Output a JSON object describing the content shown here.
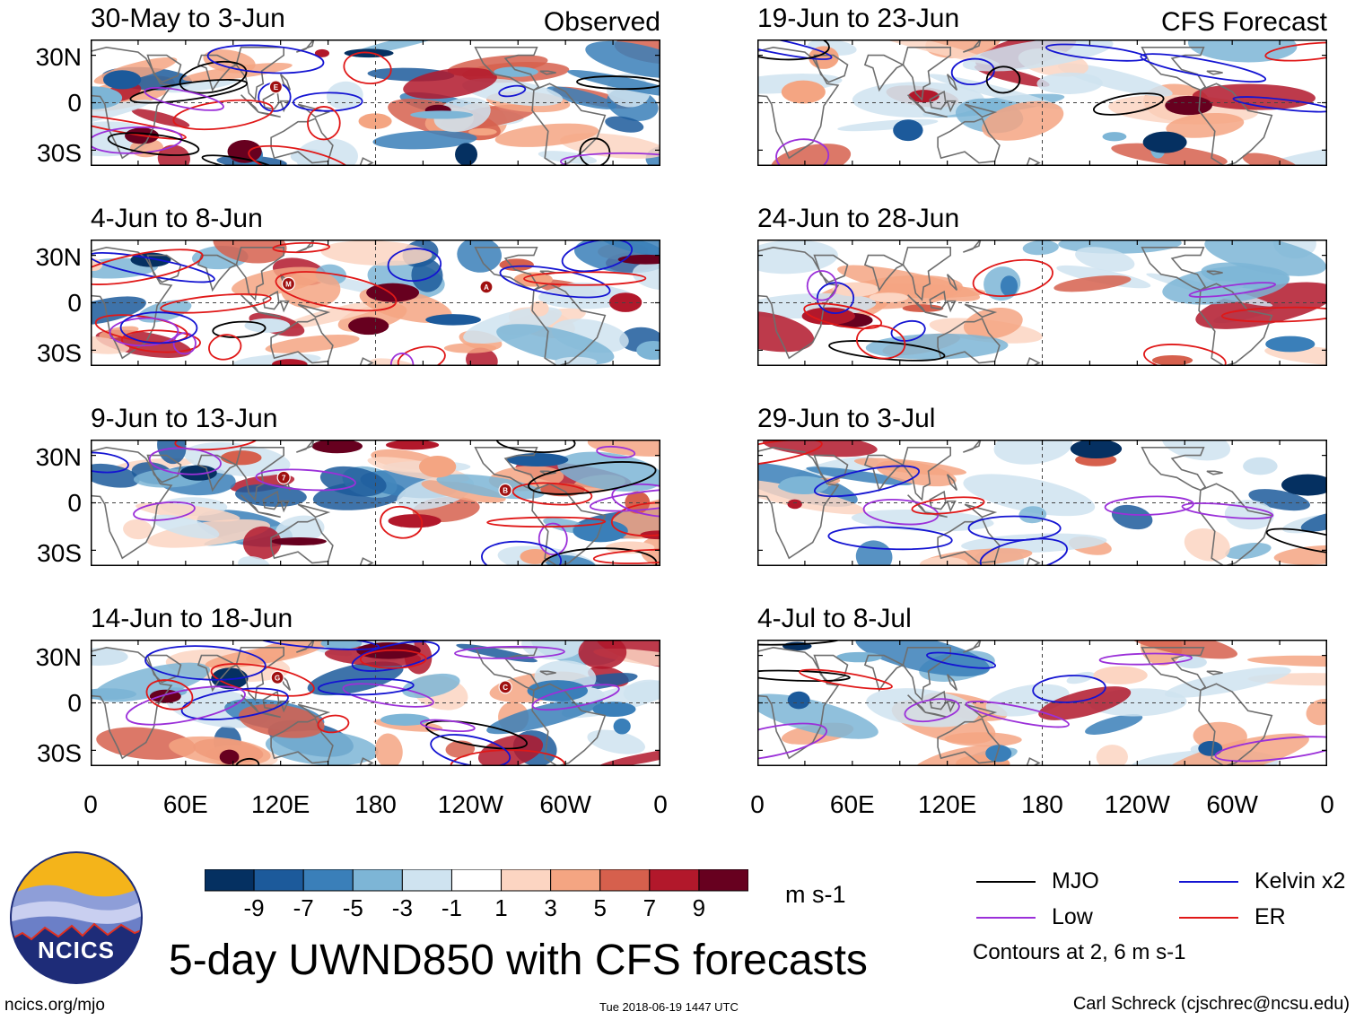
{
  "chart_data": {
    "type": "heatmap",
    "title": "5-day UWND850 with CFS forecasts",
    "variable": "UWND850",
    "units": "m s-1",
    "x_ticks": [
      "0",
      "60E",
      "120E",
      "180",
      "120W",
      "60W",
      "0"
    ],
    "y_ticks": [
      "30N",
      "0",
      "30S"
    ],
    "colorbar": {
      "tick_labels": [
        "-9",
        "-7",
        "-5",
        "-3",
        "-1",
        "1",
        "3",
        "5",
        "7",
        "9"
      ],
      "bins": [
        {
          "range": "< -9",
          "color": "#053061"
        },
        {
          "range": "-9 to -7",
          "color": "#1c5a9b"
        },
        {
          "range": "-7 to -5",
          "color": "#3a7fb9"
        },
        {
          "range": "-5 to -3",
          "color": "#7db5d6"
        },
        {
          "range": "-3 to -1",
          "color": "#cfe3f0"
        },
        {
          "range": "-1 to 1",
          "color": "#ffffff"
        },
        {
          "range": "1 to 3",
          "color": "#fcd5c2"
        },
        {
          "range": "3 to 5",
          "color": "#f4a582"
        },
        {
          "range": "5 to 7",
          "color": "#d6604d"
        },
        {
          "range": "7 to 9",
          "color": "#b2182b"
        },
        {
          "range": "> 9",
          "color": "#67001f"
        }
      ]
    },
    "contour_legend": [
      {
        "name": "MJO",
        "color": "#000000"
      },
      {
        "name": "Kelvin x2",
        "color": "#1414d2"
      },
      {
        "name": "Low",
        "color": "#9b30d9"
      },
      {
        "name": "ER",
        "color": "#e01818"
      }
    ],
    "contour_note": "Contours at 2, 6 m s-1",
    "panels": [
      {
        "period": "30-May to 3-Jun",
        "tag": "Observed",
        "storm_markers": [
          "E"
        ]
      },
      {
        "period": "4-Jun to 8-Jun",
        "tag": "",
        "storm_markers": [
          "M",
          "A"
        ]
      },
      {
        "period": "9-Jun to 13-Jun",
        "tag": "",
        "storm_markers": [
          "7",
          "B"
        ]
      },
      {
        "period": "14-Jun to 18-Jun",
        "tag": "",
        "storm_markers": [
          "G",
          "C"
        ]
      },
      {
        "period": "19-Jun to 23-Jun",
        "tag": "CFS Forecast",
        "storm_markers": []
      },
      {
        "period": "24-Jun to 28-Jun",
        "tag": "",
        "storm_markers": []
      },
      {
        "period": "29-Jun to 3-Jul",
        "tag": "",
        "storm_markers": []
      },
      {
        "period": "4-Jul to 8-Jul",
        "tag": "",
        "storm_markers": []
      }
    ]
  },
  "footer": {
    "logo_text": "NCICS",
    "url": "ncics.org/mjo",
    "timestamp": "Tue 2018-06-19 1447 UTC",
    "author": "Carl Schreck (cjschrec@ncsu.edu)"
  }
}
